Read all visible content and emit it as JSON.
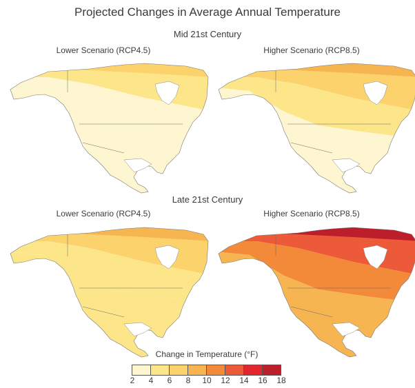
{
  "title": "Projected Changes in Average Annual Temperature",
  "periods": [
    {
      "label": "Mid 21st Century",
      "panels": [
        {
          "label": "Lower Scenario (RCP4.5)",
          "bands": [
            4,
            3,
            2
          ],
          "arctic_extra": 6
        },
        {
          "label": "Higher Scenario (RCP8.5)",
          "bands": [
            6,
            4,
            3
          ],
          "arctic_extra": 8
        }
      ]
    },
    {
      "label": "Late 21st Century",
      "panels": [
        {
          "label": "Lower Scenario (RCP4.5)",
          "bands": [
            6,
            5,
            4
          ],
          "arctic_extra": 8
        },
        {
          "label": "Higher Scenario (RCP8.5)",
          "bands": [
            12,
            10,
            8
          ],
          "arctic_extra": 16
        }
      ]
    }
  ],
  "legend": {
    "title": "Change in Temperature (°F)",
    "ticks": [
      "2",
      "4",
      "6",
      "8",
      "10",
      "12",
      "14",
      "16",
      "18"
    ],
    "colors": [
      "#fef6d0",
      "#fde68a",
      "#fcd26c",
      "#f7b552",
      "#f28a3a",
      "#ec5a3a",
      "#e3262d",
      "#bd1e2c"
    ]
  },
  "chart_data": {
    "type": "heatmap",
    "title": "Projected Changes in Average Annual Temperature",
    "panels": [
      {
        "period": "Mid 21st Century",
        "scenario": "Lower Scenario (RCP4.5)",
        "range_F": [
          2,
          6
        ]
      },
      {
        "period": "Mid 21st Century",
        "scenario": "Higher Scenario (RCP8.5)",
        "range_F": [
          2,
          8
        ]
      },
      {
        "period": "Late 21st Century",
        "scenario": "Lower Scenario (RCP4.5)",
        "range_F": [
          4,
          8
        ]
      },
      {
        "period": "Late 21st Century",
        "scenario": "Higher Scenario (RCP8.5)",
        "range_F": [
          6,
          18
        ]
      }
    ],
    "colorbar": {
      "label": "Change in Temperature (°F)",
      "min": 2,
      "max": 18,
      "step": 2
    }
  }
}
